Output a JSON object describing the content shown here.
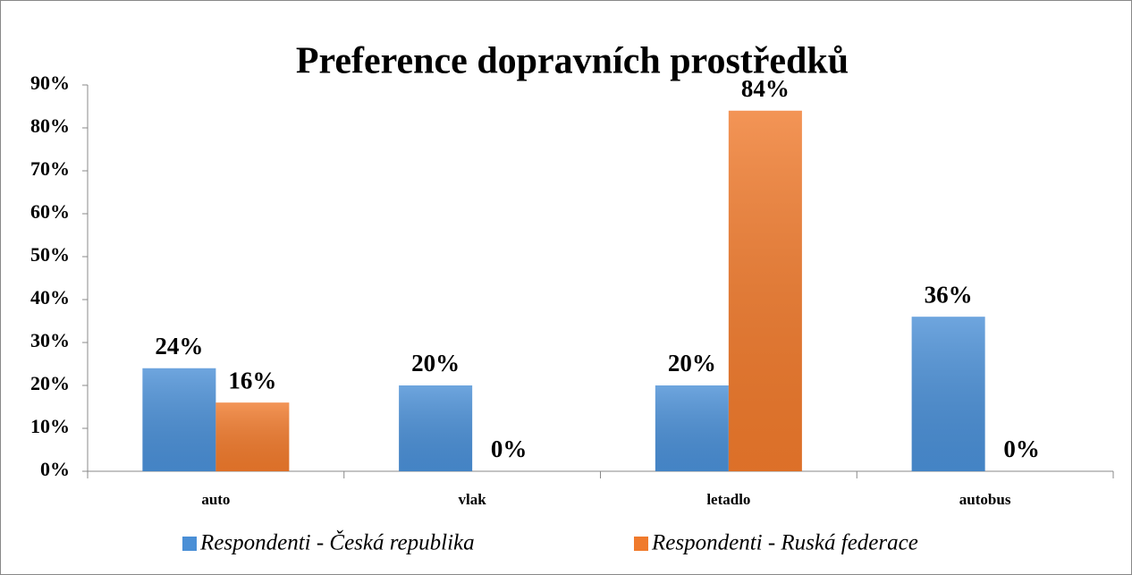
{
  "chart_data": {
    "type": "bar",
    "title": "Preference dopravních prostředků",
    "categories": [
      "auto",
      "vlak",
      "letadlo",
      "autobus"
    ],
    "series": [
      {
        "name": "Respondenti - Česká republika",
        "color": "#4a8fd6",
        "values": [
          24,
          20,
          20,
          36
        ],
        "value_labels": [
          "24%",
          "20%",
          "20%",
          "36%"
        ]
      },
      {
        "name": "Respondenti - Ruská federace",
        "color": "#f07a2c",
        "values": [
          16,
          0,
          84,
          0
        ],
        "value_labels": [
          "16%",
          "0%",
          "84%",
          "0%"
        ]
      }
    ],
    "ylim": [
      0,
      90
    ],
    "yticks": [
      {
        "value": 0,
        "label": "0%"
      },
      {
        "value": 10,
        "label": "10%"
      },
      {
        "value": 20,
        "label": "20%"
      },
      {
        "value": 30,
        "label": "30%"
      },
      {
        "value": 40,
        "label": "40%"
      },
      {
        "value": 50,
        "label": "50%"
      },
      {
        "value": 60,
        "label": "60%"
      },
      {
        "value": 70,
        "label": "70%"
      },
      {
        "value": 80,
        "label": "80%"
      },
      {
        "value": 90,
        "label": "90%"
      }
    ],
    "grid": false,
    "legend": "bottom"
  }
}
